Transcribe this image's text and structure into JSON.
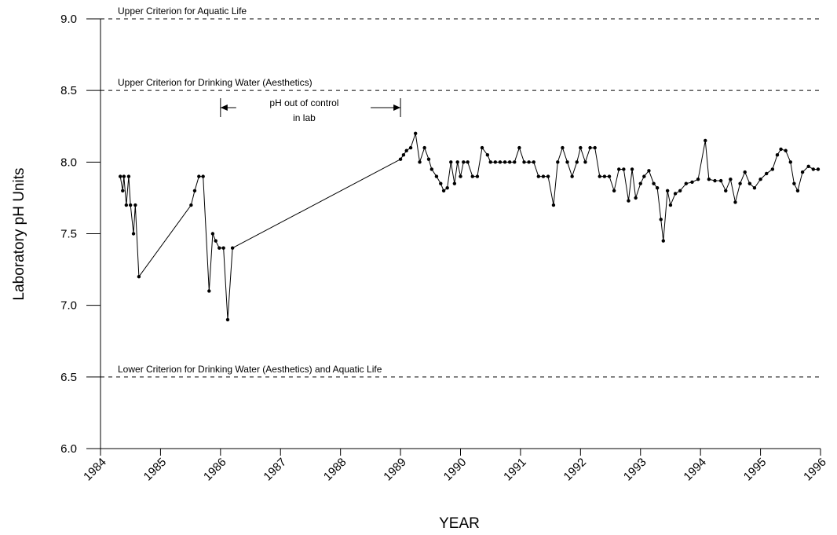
{
  "chart_data": {
    "type": "line",
    "x_label": "YEAR",
    "y_label": "Laboratory pH Units",
    "xlim": [
      1984,
      1996
    ],
    "ylim": [
      6,
      9
    ],
    "xticks": [
      1984,
      1985,
      1986,
      1987,
      1988,
      1989,
      1990,
      1991,
      1992,
      1993,
      1994,
      1995,
      1996
    ],
    "yticks": [
      {
        "value": 6,
        "label": "6.0"
      },
      {
        "value": 6.5,
        "label": "6.5"
      },
      {
        "value": 7,
        "label": "7.0"
      },
      {
        "value": 7.5,
        "label": "7.5"
      },
      {
        "value": 8,
        "label": "8.0"
      },
      {
        "value": 8.5,
        "label": "8.5"
      },
      {
        "value": 9,
        "label": "9.0"
      }
    ],
    "color": "#000000",
    "reference_lines": [
      {
        "value": 9,
        "label": "Upper Criterion for Aquatic Life"
      },
      {
        "value": 8.5,
        "label": "Upper Criterion for Drinking Water (Aesthetics)"
      },
      {
        "value": 6.5,
        "label": "Lower Criterion for Drinking Water (Aesthetics) and Aquatic Life"
      }
    ],
    "annotation": {
      "text": [
        "pH out of control",
        "in lab"
      ],
      "span": [
        1986,
        1989
      ]
    },
    "x": [
      1984.33,
      1984.37,
      1984.39,
      1984.43,
      1984.47,
      1984.5,
      1984.55,
      1984.58,
      1984.64,
      1985.51,
      1985.57,
      1985.64,
      1985.71,
      1985.81,
      1985.87,
      1985.92,
      1985.98,
      1986.05,
      1986.12,
      1986.2,
      1989.0,
      1989.05,
      1989.1,
      1989.17,
      1989.25,
      1989.32,
      1989.4,
      1989.47,
      1989.52,
      1989.6,
      1989.67,
      1989.72,
      1989.78,
      1989.84,
      1989.9,
      1989.95,
      1990.0,
      1990.05,
      1990.12,
      1990.2,
      1990.28,
      1990.36,
      1990.45,
      1990.5,
      1990.58,
      1990.66,
      1990.74,
      1990.82,
      1990.9,
      1990.98,
      1991.06,
      1991.14,
      1991.22,
      1991.3,
      1991.38,
      1991.46,
      1991.55,
      1991.62,
      1991.7,
      1991.78,
      1991.86,
      1991.94,
      1992.0,
      1992.08,
      1992.16,
      1992.24,
      1992.32,
      1992.4,
      1992.48,
      1992.56,
      1992.64,
      1992.72,
      1992.8,
      1992.86,
      1992.92,
      1993.0,
      1993.06,
      1993.14,
      1993.22,
      1993.28,
      1993.34,
      1993.38,
      1993.45,
      1993.5,
      1993.58,
      1993.66,
      1993.76,
      1993.86,
      1993.96,
      1994.08,
      1994.14,
      1994.24,
      1994.34,
      1994.42,
      1994.5,
      1994.58,
      1994.66,
      1994.74,
      1994.82,
      1994.9,
      1995.0,
      1995.1,
      1995.2,
      1995.28,
      1995.34,
      1995.42,
      1995.5,
      1995.56,
      1995.62,
      1995.7,
      1995.8,
      1995.88,
      1995.96
    ],
    "values": [
      7.9,
      7.8,
      7.9,
      7.7,
      7.9,
      7.7,
      7.5,
      7.7,
      7.2,
      7.7,
      7.8,
      7.9,
      7.9,
      7.1,
      7.5,
      7.45,
      7.4,
      7.4,
      6.9,
      7.4,
      8.02,
      8.05,
      8.08,
      8.1,
      8.2,
      8.0,
      8.1,
      8.02,
      7.95,
      7.9,
      7.85,
      7.8,
      7.82,
      8.0,
      7.85,
      8.0,
      7.9,
      8.0,
      8.0,
      7.9,
      7.9,
      8.1,
      8.05,
      8.0,
      8.0,
      8.0,
      8.0,
      8.0,
      8.0,
      8.1,
      8.0,
      8.0,
      8.0,
      7.9,
      7.9,
      7.9,
      7.7,
      8.0,
      8.1,
      8.0,
      7.9,
      8.0,
      8.1,
      8.0,
      8.1,
      8.1,
      7.9,
      7.9,
      7.9,
      7.8,
      7.95,
      7.95,
      7.73,
      7.95,
      7.75,
      7.85,
      7.9,
      7.94,
      7.85,
      7.82,
      7.6,
      7.45,
      7.8,
      7.7,
      7.78,
      7.8,
      7.85,
      7.86,
      7.88,
      8.15,
      7.88,
      7.87,
      7.87,
      7.8,
      7.88,
      7.72,
      7.85,
      7.93,
      7.85,
      7.82,
      7.88,
      7.92,
      7.95,
      8.05,
      8.09,
      8.08,
      8.0,
      7.85,
      7.8,
      7.93,
      7.97,
      7.95,
      7.95
    ]
  }
}
